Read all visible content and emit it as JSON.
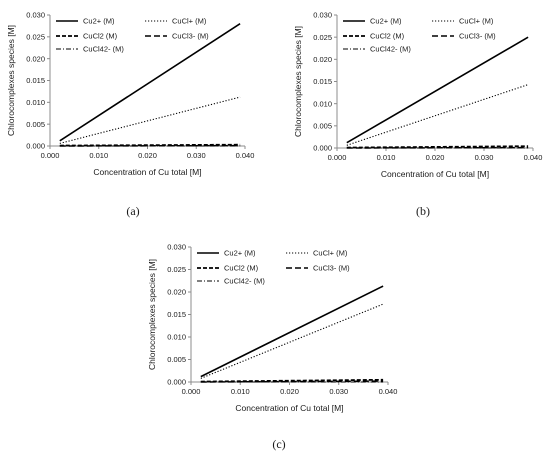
{
  "legend_labels": [
    "Cu2+ (M)",
    "CuCl+ (M)",
    "CuCl2 (M)",
    "CuCl3- (M)",
    "CuCl42- (M)"
  ],
  "chart_data": [
    {
      "type": "line",
      "panel_caption": "(a)",
      "xlabel": "Concentration of Cu total [M]",
      "ylabel": "Chlorocomplexes species [M]",
      "xlim": [
        0,
        0.04
      ],
      "ylim": [
        0,
        0.03
      ],
      "xticks": [
        "0.000",
        "0.010",
        "0.020",
        "0.030",
        "0.040"
      ],
      "yticks": [
        "0.000",
        "0.005",
        "0.010",
        "0.015",
        "0.020",
        "0.025",
        "0.030"
      ],
      "grid": false,
      "legend_position": "top",
      "series": [
        {
          "name": "Cu2+ (M)",
          "style": "solid",
          "x": [
            0.002,
            0.039
          ],
          "y": [
            0.0012,
            0.028
          ]
        },
        {
          "name": "CuCl+ (M)",
          "style": "dotted",
          "x": [
            0.002,
            0.039
          ],
          "y": [
            0.0006,
            0.0112
          ]
        },
        {
          "name": "CuCl2 (M)",
          "style": "dashed",
          "x": [
            0.002,
            0.039
          ],
          "y": [
            0.0001,
            0.0003
          ]
        },
        {
          "name": "CuCl3- (M)",
          "style": "longdash",
          "x": [
            0.002,
            0.039
          ],
          "y": [
            0.0,
            0.0001
          ]
        },
        {
          "name": "CuCl42- (M)",
          "style": "dashdot",
          "x": [
            0.002,
            0.039
          ],
          "y": [
            0.0,
            0.0
          ]
        }
      ]
    },
    {
      "type": "line",
      "panel_caption": "(b)",
      "xlabel": "Concentration of Cu total [M]",
      "ylabel": "Chlorocomplexes species [M]",
      "xlim": [
        0,
        0.04
      ],
      "ylim": [
        0,
        0.03
      ],
      "xticks": [
        "0.000",
        "0.010",
        "0.020",
        "0.030",
        "0.040"
      ],
      "yticks": [
        "0.000",
        "0.005",
        "0.010",
        "0.015",
        "0.020",
        "0.025",
        "0.030"
      ],
      "grid": false,
      "legend_position": "top",
      "series": [
        {
          "name": "Cu2+ (M)",
          "style": "solid",
          "x": [
            0.002,
            0.039
          ],
          "y": [
            0.0012,
            0.025
          ]
        },
        {
          "name": "CuCl+ (M)",
          "style": "dotted",
          "x": [
            0.002,
            0.039
          ],
          "y": [
            0.0006,
            0.0143
          ]
        },
        {
          "name": "CuCl2 (M)",
          "style": "dashed",
          "x": [
            0.002,
            0.039
          ],
          "y": [
            0.0001,
            0.0004
          ]
        },
        {
          "name": "CuCl3- (M)",
          "style": "longdash",
          "x": [
            0.002,
            0.039
          ],
          "y": [
            0.0,
            0.0001
          ]
        },
        {
          "name": "CuCl42- (M)",
          "style": "dashdot",
          "x": [
            0.002,
            0.039
          ],
          "y": [
            0.0,
            0.0
          ]
        }
      ]
    },
    {
      "type": "line",
      "panel_caption": "(c)",
      "xlabel": "Concentration of Cu total [M]",
      "ylabel": "Chlorocomplexes species [M]",
      "xlim": [
        0,
        0.04
      ],
      "ylim": [
        0,
        0.03
      ],
      "xticks": [
        "0.000",
        "0.010",
        "0.020",
        "0.030",
        "0.040"
      ],
      "yticks": [
        "0.000",
        "0.005",
        "0.010",
        "0.015",
        "0.020",
        "0.025",
        "0.030"
      ],
      "grid": false,
      "legend_position": "top",
      "series": [
        {
          "name": "Cu2+ (M)",
          "style": "solid",
          "x": [
            0.002,
            0.039
          ],
          "y": [
            0.0012,
            0.0213
          ]
        },
        {
          "name": "CuCl+ (M)",
          "style": "dotted",
          "x": [
            0.002,
            0.039
          ],
          "y": [
            0.0008,
            0.0173
          ]
        },
        {
          "name": "CuCl2 (M)",
          "style": "dashed",
          "x": [
            0.002,
            0.039
          ],
          "y": [
            0.0001,
            0.0005
          ]
        },
        {
          "name": "CuCl3- (M)",
          "style": "longdash",
          "x": [
            0.002,
            0.039
          ],
          "y": [
            0.0,
            0.0002
          ]
        },
        {
          "name": "CuCl42- (M)",
          "style": "dashdot",
          "x": [
            0.002,
            0.039
          ],
          "y": [
            0.0,
            0.0
          ]
        }
      ]
    }
  ]
}
